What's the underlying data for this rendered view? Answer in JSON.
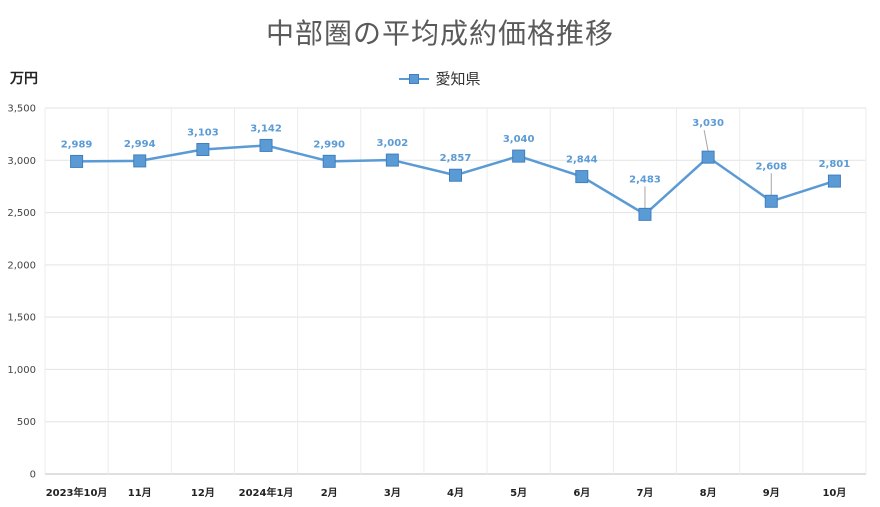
{
  "chart_data": {
    "type": "line",
    "title": "中部圏の平均成約価格推移",
    "ylabel": "万円",
    "xlabel": "",
    "ylim": [
      0,
      3500
    ],
    "yticks": [
      0,
      500,
      1000,
      1500,
      2000,
      2500,
      3000,
      3500
    ],
    "ytick_labels": [
      "0",
      "500",
      "1,000",
      "1,500",
      "2,000",
      "2,500",
      "3,000",
      "3,500"
    ],
    "categories": [
      "2023年10月",
      "11月",
      "12月",
      "2024年1月",
      "2月",
      "3月",
      "4月",
      "5月",
      "6月",
      "7月",
      "8月",
      "9月",
      "10月"
    ],
    "legend_position": "top-center",
    "grid": true,
    "series": [
      {
        "name": "愛知県",
        "color": "#5b9bd5",
        "values": [
          2989,
          2994,
          3103,
          3142,
          2990,
          3002,
          2857,
          3040,
          2844,
          2483,
          3030,
          2608,
          2801
        ],
        "labels": [
          "2,989",
          "2,994",
          "3,103",
          "3,142",
          "2,990",
          "3,002",
          "2,857",
          "3,040",
          "2,844",
          "2,483",
          "3,030",
          "2,608",
          "2,801"
        ]
      }
    ]
  }
}
